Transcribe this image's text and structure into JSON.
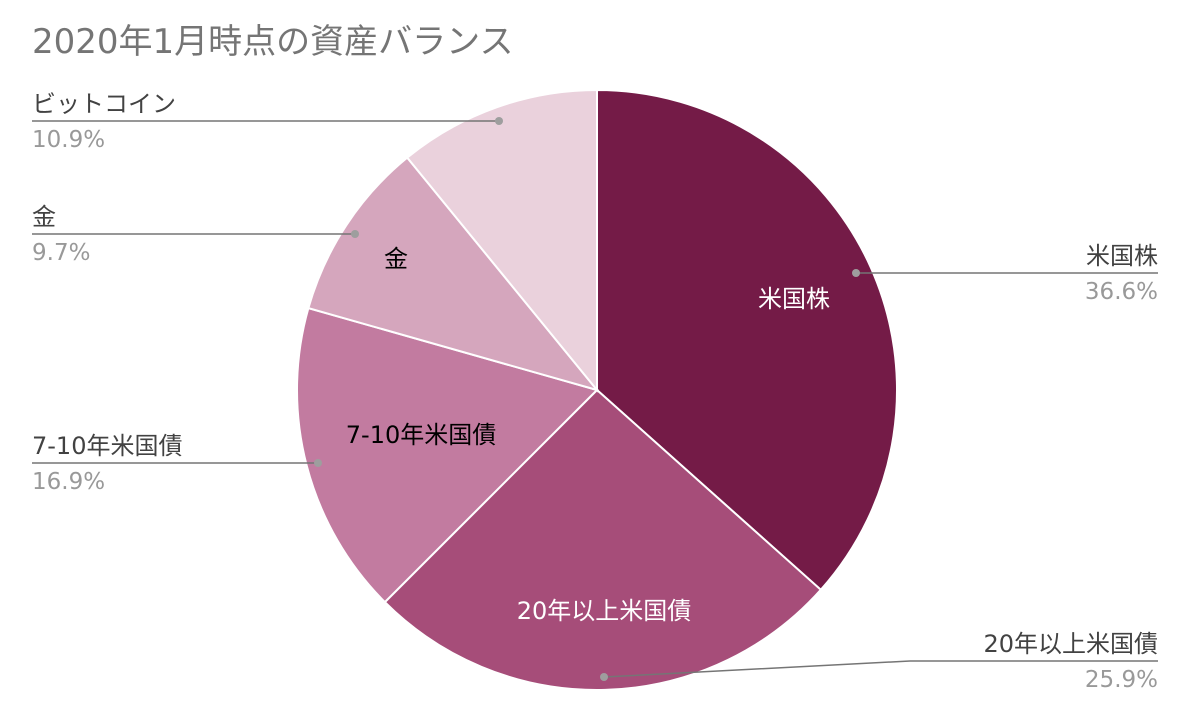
{
  "chart_data": {
    "type": "pie",
    "title": "2020年1月時点の資産バランス",
    "slices": [
      {
        "label": "米国株",
        "value": 36.6,
        "percent_label": "36.6%",
        "color": "#741b47",
        "inner_label_color": "#ffffff",
        "legend_side": "right"
      },
      {
        "label": "20年以上米国債",
        "value": 25.9,
        "percent_label": "25.9%",
        "color": "#a64d79",
        "inner_label_color": "#ffffff",
        "legend_side": "right"
      },
      {
        "label": "7-10年米国債",
        "value": 16.9,
        "percent_label": "16.9%",
        "color": "#c27ba0",
        "inner_label_color": "#000000",
        "legend_side": "left"
      },
      {
        "label": "金",
        "value": 9.7,
        "percent_label": "9.7%",
        "color": "#d5a6bd",
        "inner_label_color": "#000000",
        "legend_side": "left"
      },
      {
        "label": "ビットコイン",
        "value": 10.9,
        "percent_label": "10.9%",
        "color": "#ead1dc",
        "inner_label_color": "#000000",
        "legend_side": "left",
        "hide_inner_label": true
      }
    ],
    "start_angle": "12 o'clock",
    "direction": "clockwise",
    "legend": "callout labels outside the pie"
  },
  "colors": {
    "title_text": "#757575",
    "label_text": "#424242",
    "percent_text": "#999999",
    "leader_line": "#757575"
  }
}
